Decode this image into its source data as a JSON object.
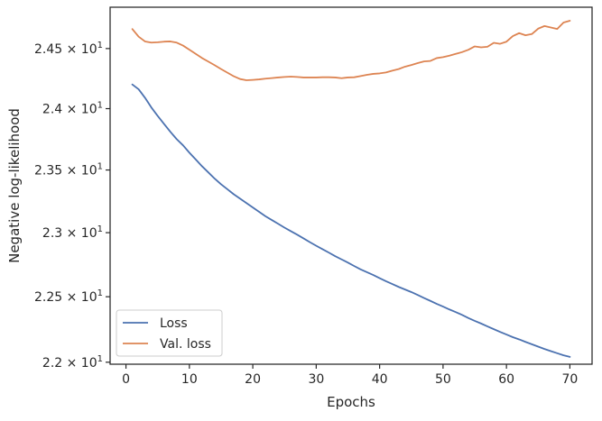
{
  "chart_data": {
    "type": "line",
    "title": "",
    "xlabel": "Epochs",
    "ylabel": "Negative log-likelihood",
    "xlim": [
      -2.5,
      73.5
    ],
    "ylim": [
      21.985,
      24.85
    ],
    "yscale": "log",
    "grid": false,
    "legend_position": "lower-left",
    "x_ticks": [
      0,
      10,
      20,
      30,
      40,
      50,
      60,
      70
    ],
    "x_tick_labels": [
      "0",
      "10",
      "20",
      "30",
      "40",
      "50",
      "60",
      "70"
    ],
    "y_ticks": [
      {
        "value": 22.0,
        "mantissa": "2.2",
        "times": " × ",
        "base": "10",
        "exponent": "1"
      },
      {
        "value": 22.5,
        "mantissa": "2.25",
        "times": " × ",
        "base": "10",
        "exponent": "1"
      },
      {
        "value": 23.0,
        "mantissa": "2.3",
        "times": " × ",
        "base": "10",
        "exponent": "1"
      },
      {
        "value": 23.5,
        "mantissa": "2.35",
        "times": " × ",
        "base": "10",
        "exponent": "1"
      },
      {
        "value": 24.0,
        "mantissa": "2.4",
        "times": " × ",
        "base": "10",
        "exponent": "1"
      },
      {
        "value": 24.5,
        "mantissa": "2.45",
        "times": " × ",
        "base": "10",
        "exponent": "1"
      }
    ],
    "x": [
      1,
      2,
      3,
      4,
      5,
      6,
      7,
      8,
      9,
      10,
      11,
      12,
      13,
      14,
      15,
      16,
      17,
      18,
      19,
      20,
      21,
      22,
      23,
      24,
      25,
      26,
      27,
      28,
      29,
      30,
      31,
      32,
      33,
      34,
      35,
      36,
      37,
      38,
      39,
      40,
      41,
      42,
      43,
      44,
      45,
      46,
      47,
      48,
      49,
      50,
      51,
      52,
      53,
      54,
      55,
      56,
      57,
      58,
      59,
      60,
      61,
      62,
      63,
      64,
      65,
      66,
      67,
      68,
      69,
      70
    ],
    "series": [
      {
        "name": "Loss",
        "color": "#4c72b0",
        "values": [
          24.2,
          24.16,
          24.09,
          24.01,
          23.94,
          23.875,
          23.81,
          23.75,
          23.7,
          23.64,
          23.585,
          23.53,
          23.48,
          23.43,
          23.385,
          23.345,
          23.305,
          23.27,
          23.235,
          23.2,
          23.165,
          23.13,
          23.1,
          23.07,
          23.04,
          23.012,
          22.984,
          22.955,
          22.925,
          22.897,
          22.87,
          22.843,
          22.815,
          22.79,
          22.765,
          22.738,
          22.712,
          22.69,
          22.668,
          22.644,
          22.62,
          22.598,
          22.576,
          22.556,
          22.536,
          22.514,
          22.49,
          22.468,
          22.445,
          22.424,
          22.402,
          22.382,
          22.36,
          22.336,
          22.314,
          22.294,
          22.272,
          22.251,
          22.23,
          22.21,
          22.19,
          22.173,
          22.154,
          22.136,
          22.118,
          22.1,
          22.084,
          22.068,
          22.052,
          22.04
        ]
      },
      {
        "name": "Val. loss",
        "color": "#dd8452",
        "values": [
          24.665,
          24.6,
          24.56,
          24.55,
          24.553,
          24.558,
          24.56,
          24.55,
          24.525,
          24.49,
          24.455,
          24.42,
          24.39,
          24.36,
          24.328,
          24.298,
          24.268,
          24.245,
          24.235,
          24.238,
          24.242,
          24.248,
          24.253,
          24.258,
          24.262,
          24.265,
          24.262,
          24.258,
          24.258,
          24.258,
          24.26,
          24.26,
          24.258,
          24.252,
          24.258,
          24.26,
          24.27,
          24.28,
          24.288,
          24.292,
          24.3,
          24.315,
          24.328,
          24.348,
          24.362,
          24.378,
          24.392,
          24.396,
          24.42,
          24.428,
          24.44,
          24.455,
          24.47,
          24.49,
          24.518,
          24.51,
          24.515,
          24.548,
          24.54,
          24.558,
          24.605,
          24.63,
          24.612,
          24.622,
          24.668,
          24.69,
          24.678,
          24.665,
          24.72,
          24.735
        ]
      }
    ]
  }
}
